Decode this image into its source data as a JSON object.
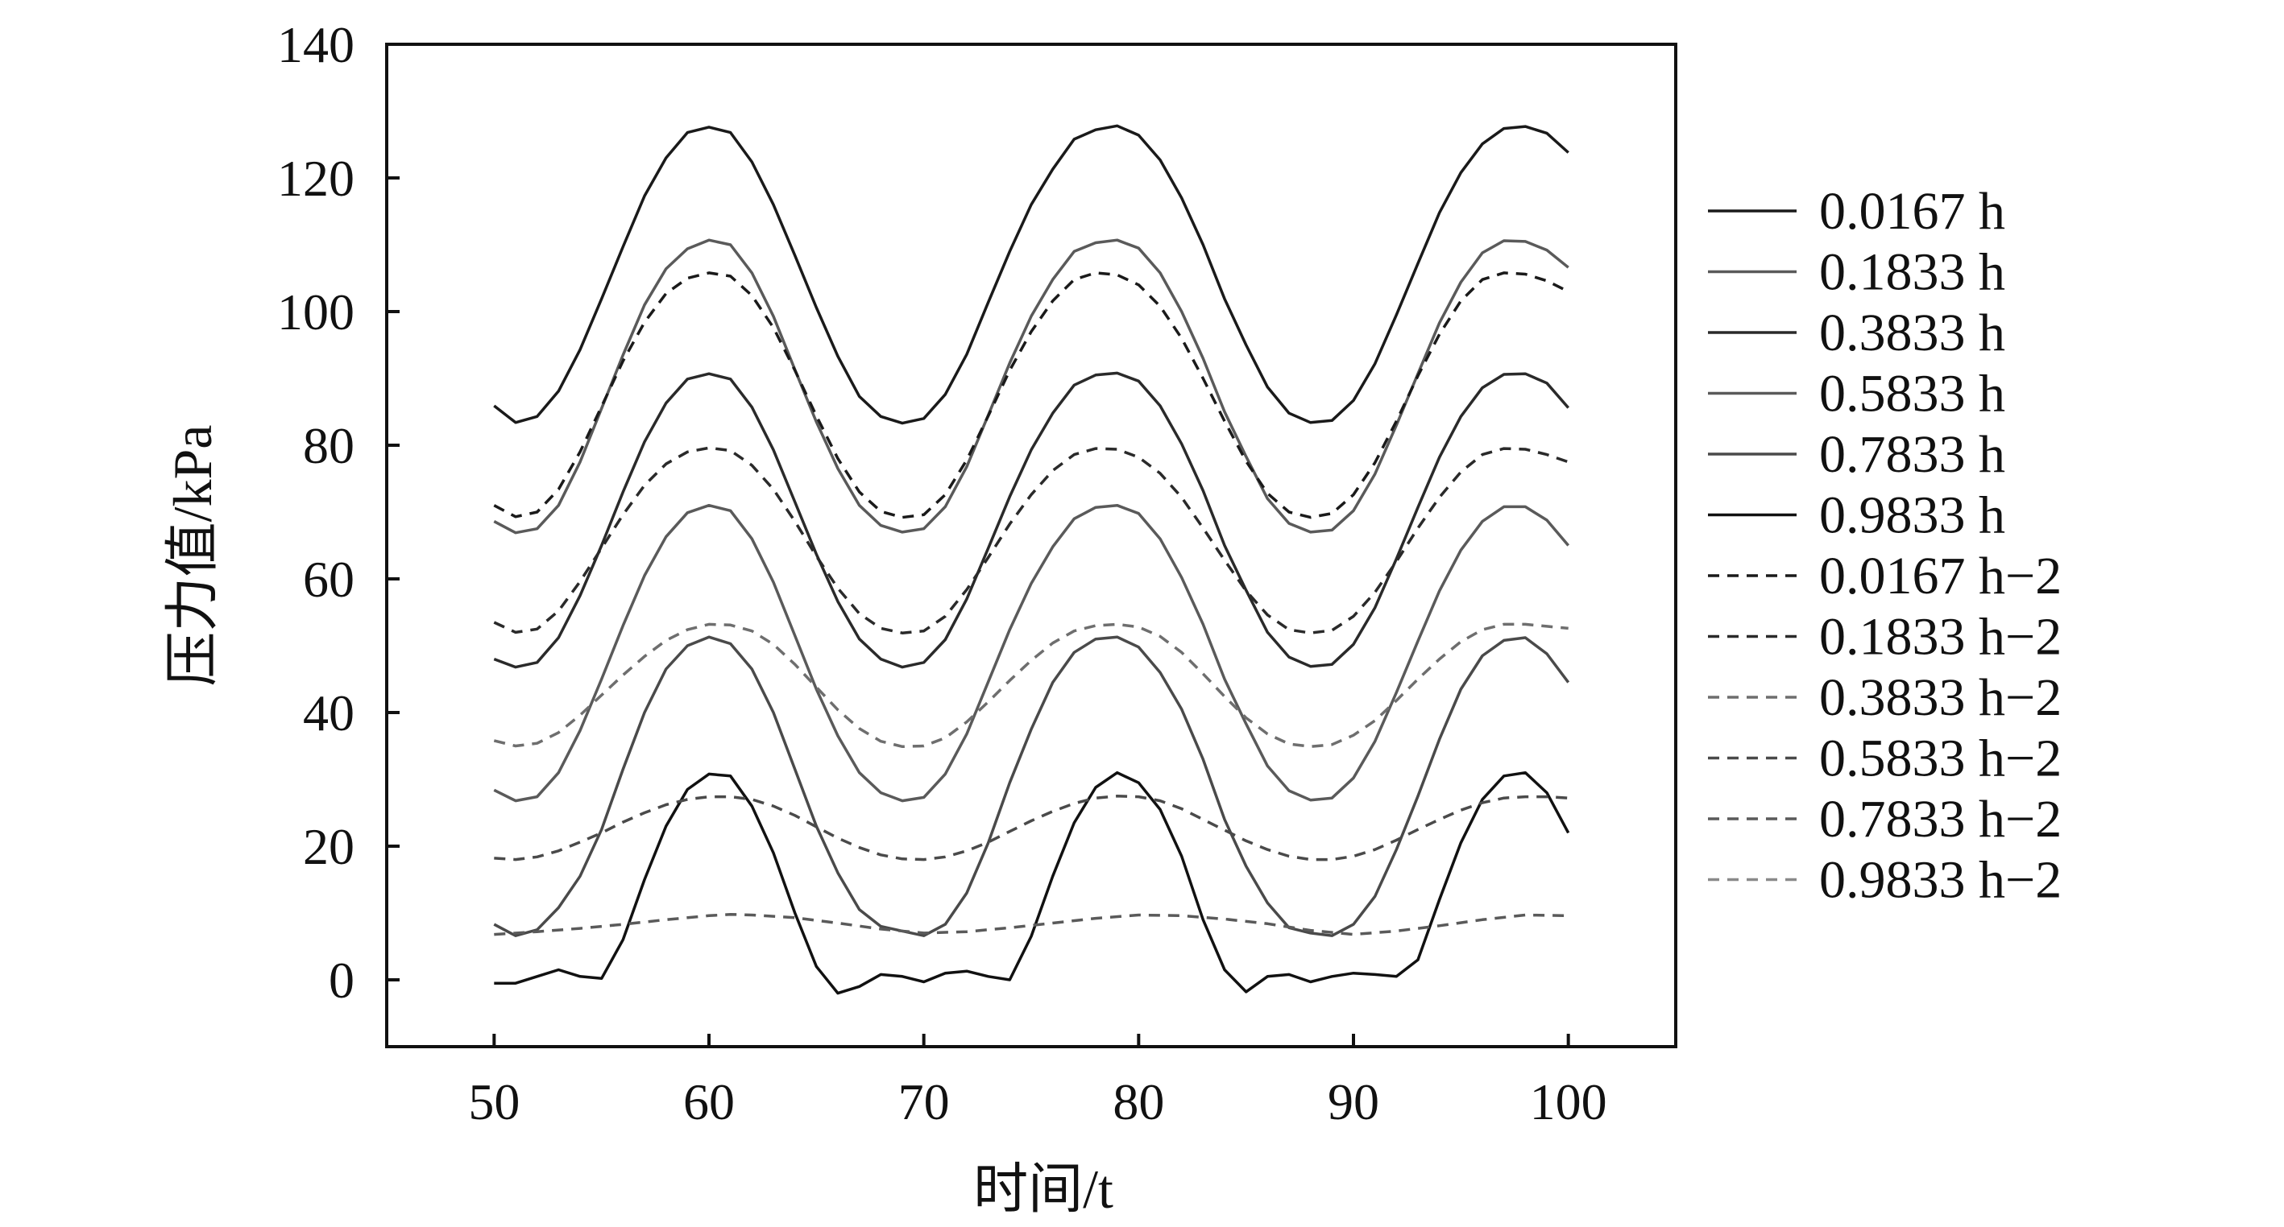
{
  "chart_data": {
    "type": "line",
    "xlabel": "时间/t",
    "ylabel": "压力值/kPa",
    "xlim": [
      45,
      105
    ],
    "ylim": [
      -10,
      140
    ],
    "xticks": [
      50,
      60,
      70,
      80,
      90,
      100
    ],
    "yticks": [
      0,
      20,
      40,
      60,
      80,
      100,
      120,
      140
    ],
    "legend_position": "right",
    "grid": false,
    "series": [
      {
        "name": "0.0167 h",
        "style": "solid",
        "color": "#1a1a1a",
        "x": [
          50,
          51,
          52,
          53,
          54,
          55,
          56,
          57,
          58,
          59,
          60,
          61,
          62,
          63,
          64,
          65,
          66,
          67,
          68,
          69,
          70,
          71,
          72,
          73,
          74,
          75,
          76,
          77,
          78,
          79,
          80,
          81,
          82,
          83,
          84,
          85,
          86,
          87,
          88,
          89,
          90,
          91,
          92,
          93,
          94,
          95,
          96,
          97,
          98,
          99,
          100
        ],
        "y": [
          85.9,
          83.4,
          84.3,
          88.1,
          94.3,
          101.9,
          109.7,
          117.3,
          123.0,
          126.8,
          127.6,
          126.8,
          122.4,
          116.0,
          108.4,
          100.6,
          93.3,
          87.3,
          84.3,
          83.3,
          84.0,
          87.6,
          93.6,
          101.4,
          109.0,
          116.0,
          121.3,
          125.8,
          127.2,
          127.8,
          126.4,
          122.7,
          117.0,
          110.0,
          101.9,
          95.0,
          88.7,
          84.8,
          83.4,
          83.7,
          86.7,
          92.2,
          99.5,
          107.2,
          114.8,
          120.8,
          125.1,
          127.4,
          127.7,
          126.7,
          123.8
        ]
      },
      {
        "name": "0.1833 h",
        "style": "solid",
        "color": "#5a5a5a",
        "x": [
          50,
          51,
          52,
          53,
          54,
          55,
          56,
          57,
          58,
          59,
          60,
          61,
          62,
          63,
          64,
          65,
          66,
          67,
          68,
          69,
          70,
          71,
          72,
          73,
          74,
          75,
          76,
          77,
          78,
          79,
          80,
          81,
          82,
          83,
          84,
          85,
          86,
          87,
          88,
          89,
          90,
          91,
          92,
          93,
          94,
          95,
          96,
          97,
          98,
          99,
          100
        ],
        "y": [
          68.6,
          66.9,
          67.5,
          71.0,
          77.5,
          85.5,
          93.5,
          101.0,
          106.4,
          109.4,
          110.7,
          110.0,
          105.8,
          99.3,
          91.3,
          83.5,
          76.5,
          71.0,
          68.0,
          67.0,
          67.5,
          70.8,
          76.8,
          84.5,
          92.3,
          99.3,
          104.8,
          109.0,
          110.3,
          110.7,
          109.5,
          105.8,
          100.0,
          93.0,
          85.0,
          78.3,
          72.0,
          68.3,
          67.0,
          67.3,
          70.2,
          75.7,
          83.0,
          90.7,
          98.3,
          104.4,
          108.8,
          110.6,
          110.5,
          109.2,
          106.6
        ]
      },
      {
        "name": "0.3833 h",
        "style": "solid",
        "color": "#2a2a2a",
        "x": [
          50,
          51,
          52,
          53,
          54,
          55,
          56,
          57,
          58,
          59,
          60,
          61,
          62,
          63,
          64,
          65,
          66,
          67,
          68,
          69,
          70,
          71,
          72,
          73,
          74,
          75,
          76,
          77,
          78,
          79,
          80,
          81,
          82,
          83,
          84,
          85,
          86,
          87,
          88,
          89,
          90,
          91,
          92,
          93,
          94,
          95,
          96,
          97,
          98,
          99,
          100
        ],
        "y": [
          48.0,
          46.8,
          47.5,
          51.2,
          57.5,
          65.0,
          73.0,
          80.5,
          86.3,
          89.9,
          90.7,
          89.9,
          85.7,
          79.3,
          71.5,
          63.7,
          56.6,
          51.0,
          48.0,
          46.8,
          47.5,
          50.9,
          57.0,
          64.6,
          72.3,
          79.3,
          84.8,
          89.0,
          90.5,
          90.8,
          89.6,
          85.9,
          80.2,
          73.2,
          65.0,
          58.3,
          52.0,
          48.3,
          46.9,
          47.2,
          50.2,
          55.7,
          63.0,
          70.7,
          78.2,
          84.3,
          88.6,
          90.6,
          90.7,
          89.3,
          85.6
        ]
      },
      {
        "name": "0.5833 h",
        "style": "solid",
        "color": "#5a5a5a",
        "x": [
          50,
          51,
          52,
          53,
          54,
          55,
          56,
          57,
          58,
          59,
          60,
          61,
          62,
          63,
          64,
          65,
          66,
          67,
          68,
          69,
          70,
          71,
          72,
          73,
          74,
          75,
          76,
          77,
          78,
          79,
          80,
          81,
          82,
          83,
          84,
          85,
          86,
          87,
          88,
          89,
          90,
          91,
          92,
          93,
          94,
          95,
          96,
          97,
          98,
          99,
          100
        ],
        "y": [
          28.4,
          26.8,
          27.4,
          31.0,
          37.3,
          45.0,
          53.0,
          60.5,
          66.3,
          69.9,
          71.0,
          70.2,
          66.0,
          59.5,
          51.5,
          43.5,
          36.5,
          31.0,
          28.0,
          26.8,
          27.3,
          30.8,
          36.8,
          44.6,
          52.4,
          59.3,
          64.8,
          69.0,
          70.7,
          71.0,
          69.8,
          66.0,
          60.2,
          53.2,
          45.0,
          38.3,
          32.0,
          28.3,
          26.9,
          27.2,
          30.2,
          35.7,
          43.0,
          50.7,
          58.2,
          64.3,
          68.6,
          70.8,
          70.8,
          68.8,
          65.0
        ]
      },
      {
        "name": "0.7833 h",
        "style": "solid",
        "color": "#4a4a4a",
        "x": [
          50,
          51,
          52,
          53,
          54,
          55,
          56,
          57,
          58,
          59,
          60,
          61,
          62,
          63,
          64,
          65,
          66,
          67,
          68,
          69,
          70,
          71,
          72,
          73,
          74,
          75,
          76,
          77,
          78,
          79,
          80,
          81,
          82,
          83,
          84,
          85,
          86,
          87,
          88,
          89,
          90,
          91,
          92,
          93,
          94,
          95,
          96,
          97,
          98,
          99,
          100
        ],
        "y": [
          8.3,
          6.6,
          7.5,
          10.8,
          15.5,
          22.5,
          31.5,
          40.0,
          46.5,
          50.0,
          51.3,
          50.3,
          46.5,
          40.0,
          31.5,
          23.0,
          16.0,
          10.5,
          8.0,
          7.3,
          6.6,
          8.3,
          13.0,
          20.5,
          29.5,
          37.5,
          44.5,
          49.0,
          51.0,
          51.3,
          49.8,
          46.0,
          40.5,
          33.0,
          24.0,
          17.0,
          11.5,
          7.8,
          7.0,
          6.6,
          8.3,
          12.5,
          19.5,
          27.5,
          36.0,
          43.5,
          48.5,
          50.8,
          51.2,
          48.8,
          44.5
        ]
      },
      {
        "name": "0.9833 h",
        "style": "solid",
        "color": "#111111",
        "x": [
          50,
          51,
          52,
          53,
          54,
          55,
          56,
          57,
          58,
          59,
          60,
          61,
          62,
          63,
          64,
          65,
          66,
          67,
          68,
          69,
          70,
          71,
          72,
          73,
          74,
          75,
          76,
          77,
          78,
          79,
          80,
          81,
          82,
          83,
          84,
          85,
          86,
          87,
          88,
          89,
          90,
          91,
          92,
          93,
          94,
          95,
          96,
          97,
          98,
          99,
          100
        ],
        "y": [
          -0.5,
          -0.5,
          0.5,
          1.5,
          0.5,
          0.2,
          6.0,
          15.0,
          23.0,
          28.5,
          30.8,
          30.5,
          26.0,
          19.0,
          10.0,
          2.0,
          -2.0,
          -1.0,
          0.8,
          0.5,
          -0.3,
          1.0,
          1.3,
          0.5,
          0.0,
          6.5,
          15.5,
          23.5,
          28.8,
          31.0,
          29.5,
          25.5,
          18.5,
          9.0,
          1.5,
          -1.8,
          0.5,
          0.8,
          -0.3,
          0.5,
          1.0,
          0.8,
          0.5,
          3.0,
          12.0,
          20.5,
          27.0,
          30.5,
          31.0,
          28.0,
          22.0
        ]
      },
      {
        "name": "0.0167 h−2",
        "style": "dashed",
        "color": "#1a1a1a",
        "x": [
          50,
          51,
          52,
          53,
          54,
          55,
          56,
          57,
          58,
          59,
          60,
          61,
          62,
          63,
          64,
          65,
          66,
          67,
          68,
          69,
          70,
          71,
          72,
          73,
          74,
          75,
          76,
          77,
          78,
          79,
          80,
          81,
          82,
          83,
          84,
          85,
          86,
          87,
          88,
          89,
          90,
          91,
          92,
          93,
          94,
          95,
          96,
          97,
          98,
          99,
          100
        ],
        "y": [
          71.0,
          69.3,
          70.0,
          73.4,
          79.0,
          85.8,
          92.6,
          98.4,
          102.7,
          105.0,
          105.8,
          105.3,
          102.4,
          97.6,
          91.2,
          84.4,
          78.0,
          73.0,
          70.1,
          69.2,
          69.6,
          72.6,
          77.8,
          84.4,
          91.2,
          97.0,
          101.6,
          104.8,
          105.8,
          105.5,
          104.0,
          100.8,
          96.0,
          90.0,
          83.6,
          77.6,
          72.8,
          70.0,
          69.2,
          69.8,
          72.6,
          77.4,
          83.6,
          90.4,
          96.6,
          101.6,
          104.8,
          105.8,
          105.6,
          104.6,
          103.0
        ]
      },
      {
        "name": "0.1833 h−2",
        "style": "dashed",
        "color": "#2a2a2a",
        "x": [
          50,
          51,
          52,
          53,
          54,
          55,
          56,
          57,
          58,
          59,
          60,
          61,
          62,
          63,
          64,
          65,
          66,
          67,
          68,
          69,
          70,
          71,
          72,
          73,
          74,
          75,
          76,
          77,
          78,
          79,
          80,
          81,
          82,
          83,
          84,
          85,
          86,
          87,
          88,
          89,
          90,
          91,
          92,
          93,
          94,
          95,
          96,
          97,
          98,
          99,
          100
        ],
        "y": [
          53.5,
          52.0,
          52.5,
          55.2,
          59.6,
          64.6,
          69.6,
          74.0,
          77.2,
          79.0,
          79.6,
          79.2,
          77.0,
          73.4,
          68.6,
          63.4,
          58.6,
          54.8,
          52.6,
          51.9,
          52.2,
          54.4,
          58.4,
          63.2,
          68.2,
          72.6,
          76.2,
          78.6,
          79.5,
          79.4,
          78.2,
          75.8,
          72.2,
          67.6,
          62.8,
          58.2,
          54.6,
          52.4,
          51.9,
          52.3,
          54.4,
          58.0,
          62.6,
          67.6,
          72.2,
          76.0,
          78.6,
          79.5,
          79.4,
          78.6,
          77.5
        ]
      },
      {
        "name": "0.3833 h−2",
        "style": "dashed",
        "color": "#6e6e6e",
        "x": [
          50,
          51,
          52,
          53,
          54,
          55,
          56,
          57,
          58,
          59,
          60,
          61,
          62,
          63,
          64,
          65,
          66,
          67,
          68,
          69,
          70,
          71,
          72,
          73,
          74,
          75,
          76,
          77,
          78,
          79,
          80,
          81,
          82,
          83,
          84,
          85,
          86,
          87,
          88,
          89,
          90,
          91,
          92,
          93,
          94,
          95,
          96,
          97,
          98,
          99,
          100
        ],
        "y": [
          35.8,
          35.0,
          35.4,
          37.0,
          39.6,
          42.6,
          45.6,
          48.4,
          50.8,
          52.4,
          53.2,
          53.1,
          52.2,
          50.2,
          47.2,
          43.8,
          40.4,
          37.6,
          35.7,
          34.9,
          35.0,
          36.2,
          38.6,
          41.6,
          44.8,
          47.8,
          50.4,
          52.2,
          53.0,
          53.2,
          52.8,
          51.4,
          49.0,
          45.8,
          42.4,
          39.2,
          36.8,
          35.3,
          34.9,
          35.2,
          36.6,
          38.8,
          41.8,
          45.0,
          48.0,
          50.6,
          52.4,
          53.2,
          53.2,
          52.9,
          52.6
        ]
      },
      {
        "name": "0.5833 h−2",
        "style": "dashed",
        "color": "#4a4a4a",
        "x": [
          50,
          51,
          52,
          53,
          54,
          55,
          56,
          57,
          58,
          59,
          60,
          61,
          62,
          63,
          64,
          65,
          66,
          67,
          68,
          69,
          70,
          71,
          72,
          73,
          74,
          75,
          76,
          77,
          78,
          79,
          80,
          81,
          82,
          83,
          84,
          85,
          86,
          87,
          88,
          89,
          90,
          91,
          92,
          93,
          94,
          95,
          96,
          97,
          98,
          99,
          100
        ],
        "y": [
          18.2,
          18.0,
          18.4,
          19.3,
          20.6,
          22.0,
          23.6,
          25.0,
          26.2,
          27.0,
          27.4,
          27.4,
          27.0,
          26.0,
          24.6,
          22.9,
          21.2,
          19.8,
          18.7,
          18.1,
          18.0,
          18.4,
          19.3,
          20.6,
          22.2,
          23.8,
          25.2,
          26.4,
          27.2,
          27.5,
          27.4,
          26.8,
          25.6,
          24.0,
          22.4,
          20.8,
          19.5,
          18.5,
          18.0,
          18.0,
          18.5,
          19.5,
          20.9,
          22.5,
          24.0,
          25.4,
          26.5,
          27.2,
          27.4,
          27.4,
          27.2
        ]
      },
      {
        "name": "0.7833 h−2",
        "style": "dashed",
        "color": "#5a5a5a",
        "x": [
          50,
          52,
          54,
          56,
          58,
          60,
          61,
          62,
          64,
          66,
          68,
          70,
          72,
          74,
          76,
          78,
          80,
          82,
          84,
          86,
          88,
          90,
          92,
          94,
          96,
          98,
          100
        ],
        "y": [
          6.8,
          7.2,
          7.7,
          8.3,
          9.0,
          9.6,
          9.8,
          9.7,
          9.3,
          8.5,
          7.6,
          7.0,
          7.2,
          7.8,
          8.5,
          9.2,
          9.7,
          9.6,
          9.1,
          8.4,
          7.4,
          6.8,
          7.3,
          8.1,
          9.0,
          9.7,
          9.6
        ]
      },
      {
        "name": "0.9833 h−2",
        "style": "dashed",
        "color": "#8a8a8a",
        "x": [],
        "y": []
      }
    ]
  }
}
